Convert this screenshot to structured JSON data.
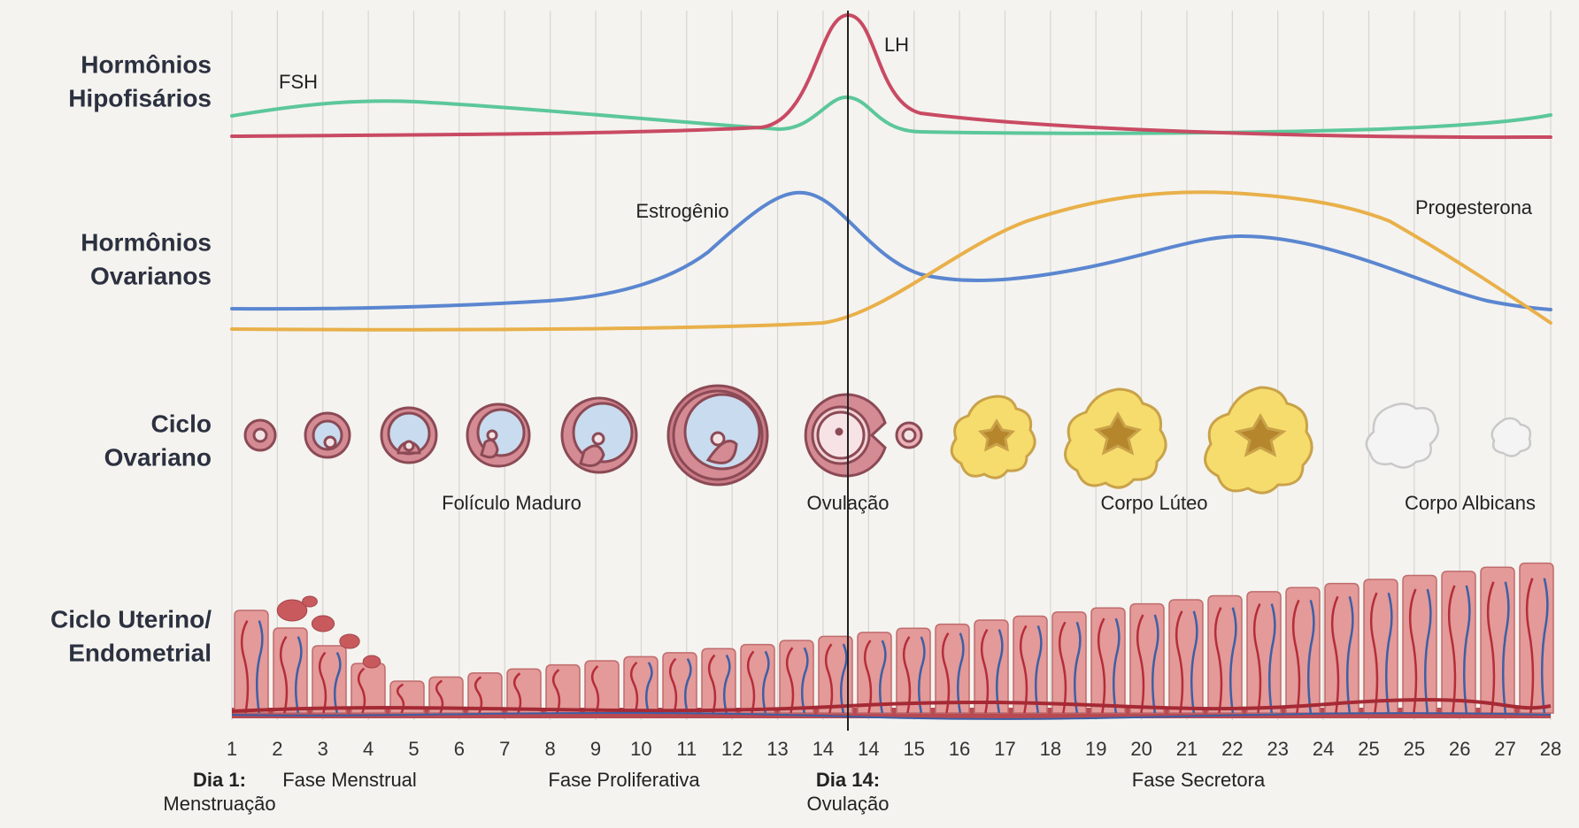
{
  "rows": [
    {
      "lines": [
        "Hormônios",
        "Hipofisários"
      ]
    },
    {
      "lines": [
        "Hormônios",
        "Ovarianos"
      ]
    },
    {
      "lines": [
        "Ciclo",
        "Ovariano"
      ]
    },
    {
      "lines": [
        "Ciclo Uterino/",
        "Endometrial"
      ]
    }
  ],
  "curve_labels": {
    "fsh": "FSH",
    "lh": "LH",
    "estrogen": "Estrogênio",
    "progesterone": "Progesterona"
  },
  "ovary_labels": [
    "Folículo Maduro",
    "Ovulação",
    "Corpo Lúteo",
    "Corpo Albicans"
  ],
  "day_labels": [
    1,
    2,
    3,
    4,
    5,
    6,
    7,
    8,
    9,
    10,
    11,
    12,
    13,
    14,
    14,
    15,
    16,
    17,
    18,
    19,
    20,
    21,
    22,
    23,
    24,
    25,
    25,
    26,
    27,
    28
  ],
  "phases": {
    "day1": {
      "title": "Dia 1:",
      "subtitle": "Menstruação"
    },
    "menstrual": "Fase Menstrual",
    "proliferative": "Fase Proliferativa",
    "day14": {
      "title": "Dia 14:",
      "subtitle": "Ovulação"
    },
    "secretory": "Fase Secretora"
  }
}
